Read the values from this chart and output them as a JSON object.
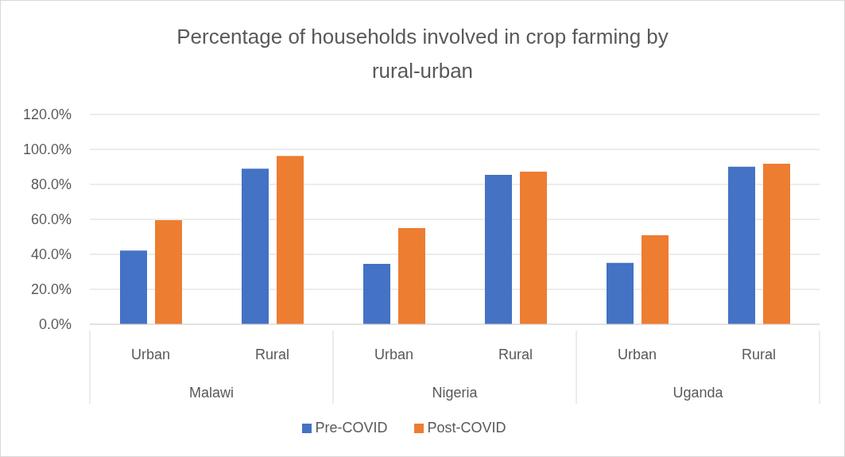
{
  "chart_data": {
    "type": "bar",
    "title": "Percentage of households involved in crop farming by rural-urban",
    "categories": [
      "Urban",
      "Rural",
      "Urban",
      "Rural",
      "Urban",
      "Rural"
    ],
    "annotations": [
      "Malawi",
      "Nigeria",
      "Uganda"
    ],
    "series": [
      {
        "name": "Pre-COVID",
        "color": "#4472c4",
        "values": [
          42.2,
          89.0,
          34.6,
          85.5,
          35.1,
          90.1
        ]
      },
      {
        "name": "Post-COVID",
        "color": "#ed7d31",
        "values": [
          59.5,
          96.3,
          55.0,
          87.3,
          50.9,
          91.8
        ]
      }
    ],
    "ylim": [
      0,
      120
    ],
    "yticks": [
      {
        "value": 0,
        "label": "0.0%"
      },
      {
        "value": 20,
        "label": "20.0%"
      },
      {
        "value": 40,
        "label": "40.0%"
      },
      {
        "value": 60,
        "label": "60.0%"
      },
      {
        "value": 80,
        "label": "80.0%"
      },
      {
        "value": 100,
        "label": "100.0%"
      },
      {
        "value": 120,
        "label": "120.0%"
      }
    ],
    "grid": "y",
    "legend": "bottom"
  }
}
